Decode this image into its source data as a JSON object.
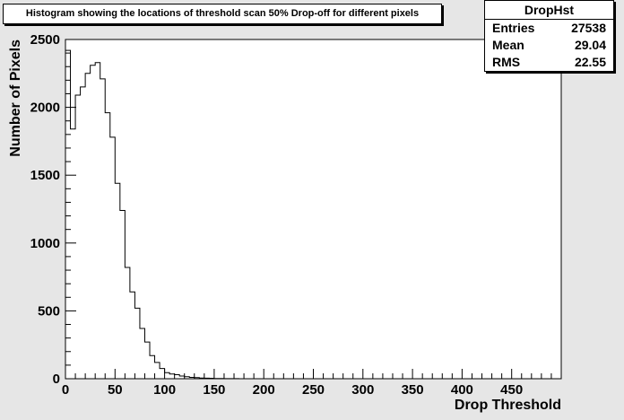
{
  "title": "Histogram showing the locations of threshold scan 50% Drop-off for different pixels",
  "stats": {
    "name": "DropHst",
    "rows": [
      {
        "label": "Entries",
        "value": "27538"
      },
      {
        "label": "Mean",
        "value": "29.04"
      },
      {
        "label": "RMS",
        "value": "22.55"
      }
    ]
  },
  "chart_data": {
    "type": "bar",
    "style": "step-histogram",
    "xlabel": "Drop Threshold",
    "ylabel": "Number of Pixels",
    "xlim": [
      0,
      500
    ],
    "ylim": [
      0,
      2500
    ],
    "xticks": [
      0,
      50,
      100,
      150,
      200,
      250,
      300,
      350,
      400,
      450
    ],
    "yticks": [
      0,
      500,
      1000,
      1500,
      2000,
      2500
    ],
    "bin_width": 5,
    "bin_start": 0,
    "values": [
      2420,
      1840,
      2090,
      2150,
      2250,
      2310,
      2330,
      2210,
      1960,
      1780,
      1440,
      1240,
      820,
      640,
      520,
      370,
      270,
      170,
      120,
      75,
      45,
      35,
      30,
      20,
      15,
      10,
      8,
      5,
      4,
      3,
      2,
      2,
      1,
      1,
      1
    ]
  }
}
